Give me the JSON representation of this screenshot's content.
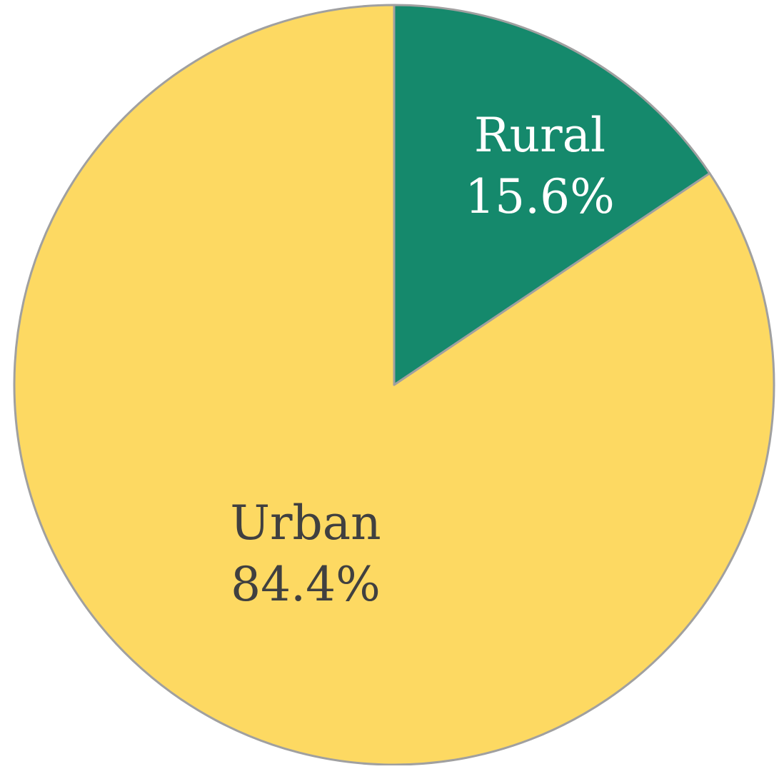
{
  "chart_data": {
    "type": "pie",
    "start_angle": "12 o'clock, clockwise",
    "slices": [
      {
        "label": "Rural",
        "value": 15.6,
        "value_label": "15.6%",
        "color": "#15896c",
        "label_color": "#ffffff"
      },
      {
        "label": "Urban",
        "value": 84.4,
        "value_label": "84.4%",
        "color": "#fdd962",
        "label_color": "#404040"
      }
    ],
    "slice_outline_color": "#a0a0a0",
    "legend": "none",
    "title": ""
  }
}
